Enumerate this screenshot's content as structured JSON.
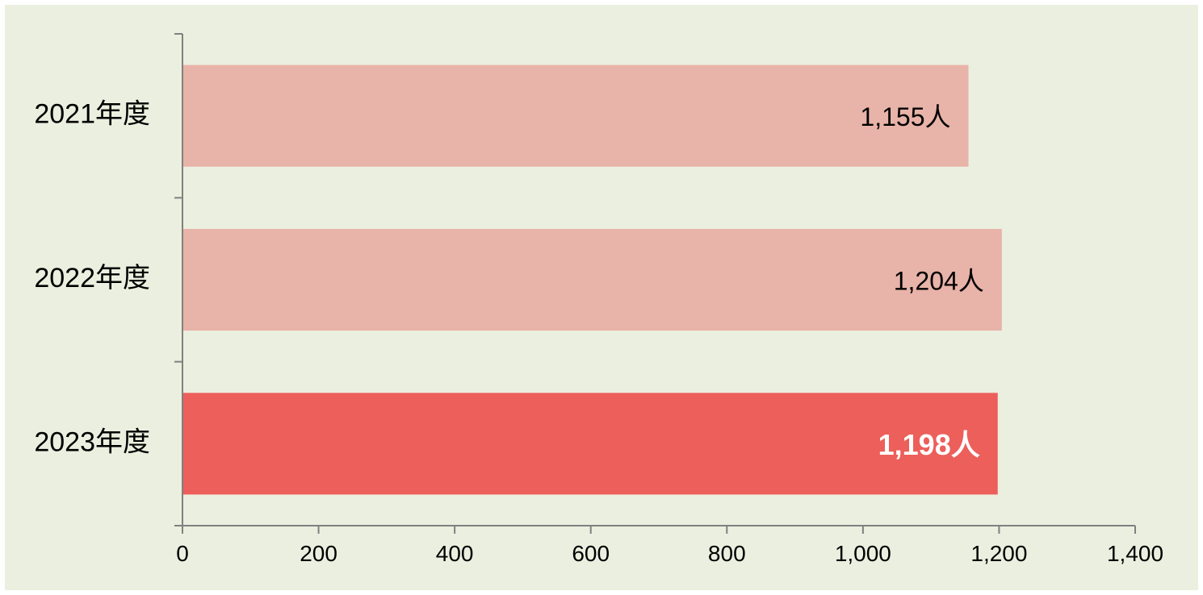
{
  "chart_data": {
    "type": "bar",
    "orientation": "horizontal",
    "categories": [
      "2021年度",
      "2022年度",
      "2023年度"
    ],
    "values": [
      1155,
      1204,
      1198
    ],
    "data_labels": [
      "1,155人",
      "1,204人",
      "1,198人"
    ],
    "x_ticks": [
      0,
      200,
      400,
      600,
      800,
      1000,
      1200,
      1400
    ],
    "x_tick_labels": [
      "0",
      "200",
      "400",
      "600",
      "800",
      "1,000",
      "1,200",
      "1,400"
    ],
    "xlim": [
      0,
      1400
    ],
    "title": "",
    "xlabel": "",
    "ylabel": "",
    "grid": false,
    "legend": "none",
    "highlight_index": 2
  },
  "colors": {
    "background": "#ebefdf",
    "bar": "#e8b3a8",
    "bar_highlight": "#ec5f5b",
    "axis": "#808080"
  }
}
